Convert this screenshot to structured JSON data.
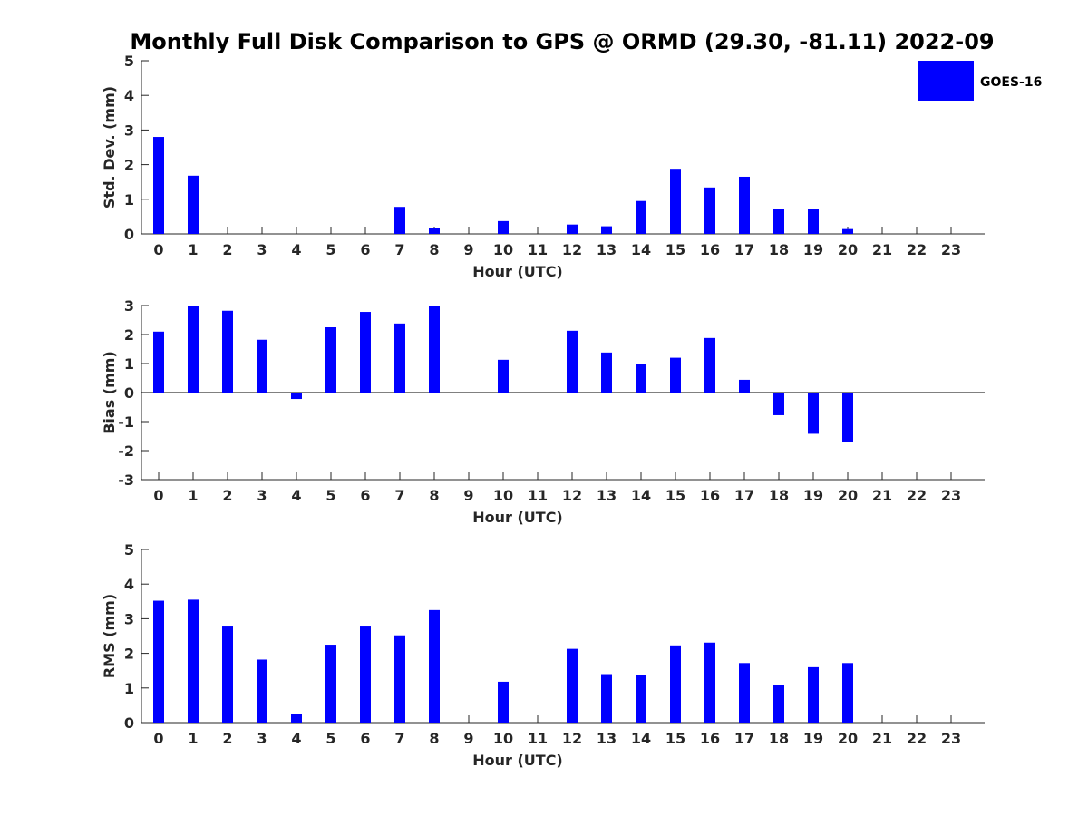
{
  "title": "Monthly Full Disk Comparison to GPS @ ORMD (29.30, -81.11) 2022-09",
  "legend": {
    "label": "GOES-16",
    "color": "#0000ff",
    "placement": "top-right"
  },
  "chart_data": [
    {
      "type": "bar",
      "xlabel": "Hour (UTC)",
      "ylabel": "Std. Dev. (mm)",
      "ylim": [
        0,
        5
      ],
      "yticks": [
        0,
        1,
        2,
        3,
        4,
        5
      ],
      "categories": [
        "0",
        "1",
        "2",
        "3",
        "4",
        "5",
        "6",
        "7",
        "8",
        "9",
        "10",
        "11",
        "12",
        "13",
        "14",
        "15",
        "16",
        "17",
        "18",
        "19",
        "20",
        "21",
        "22",
        "23"
      ],
      "series": [
        {
          "name": "GOES-16",
          "values": [
            2.8,
            1.68,
            null,
            null,
            null,
            null,
            null,
            0.78,
            0.17,
            null,
            0.37,
            null,
            0.27,
            0.22,
            0.95,
            1.88,
            1.34,
            1.65,
            0.73,
            0.71,
            0.14,
            null,
            null,
            null
          ]
        }
      ]
    },
    {
      "type": "bar",
      "xlabel": "Hour (UTC)",
      "ylabel": "Bias (mm)",
      "ylim": [
        -3,
        3
      ],
      "yticks": [
        -3,
        -2,
        -1,
        0,
        1,
        2,
        3
      ],
      "zero_line": true,
      "categories": [
        "0",
        "1",
        "2",
        "3",
        "4",
        "5",
        "6",
        "7",
        "8",
        "9",
        "10",
        "11",
        "12",
        "13",
        "14",
        "15",
        "16",
        "17",
        "18",
        "19",
        "20",
        "21",
        "22",
        "23"
      ],
      "series": [
        {
          "name": "GOES-16",
          "values": [
            2.1,
            3.0,
            2.82,
            1.82,
            -0.22,
            2.25,
            2.78,
            2.38,
            3.0,
            null,
            1.13,
            null,
            2.13,
            1.38,
            1.0,
            1.2,
            1.88,
            0.44,
            -0.78,
            -1.42,
            -1.7,
            null,
            null,
            null
          ]
        }
      ]
    },
    {
      "type": "bar",
      "xlabel": "Hour (UTC)",
      "ylabel": "RMS (mm)",
      "ylim": [
        0,
        5
      ],
      "yticks": [
        0,
        1,
        2,
        3,
        4,
        5
      ],
      "categories": [
        "0",
        "1",
        "2",
        "3",
        "4",
        "5",
        "6",
        "7",
        "8",
        "9",
        "10",
        "11",
        "12",
        "13",
        "14",
        "15",
        "16",
        "17",
        "18",
        "19",
        "20",
        "21",
        "22",
        "23"
      ],
      "series": [
        {
          "name": "GOES-16",
          "values": [
            3.52,
            3.55,
            2.8,
            1.82,
            0.24,
            2.25,
            2.8,
            2.52,
            3.25,
            null,
            1.18,
            null,
            2.13,
            1.4,
            1.37,
            2.23,
            2.31,
            1.72,
            1.08,
            1.6,
            1.72,
            null,
            null,
            null
          ]
        }
      ]
    }
  ]
}
